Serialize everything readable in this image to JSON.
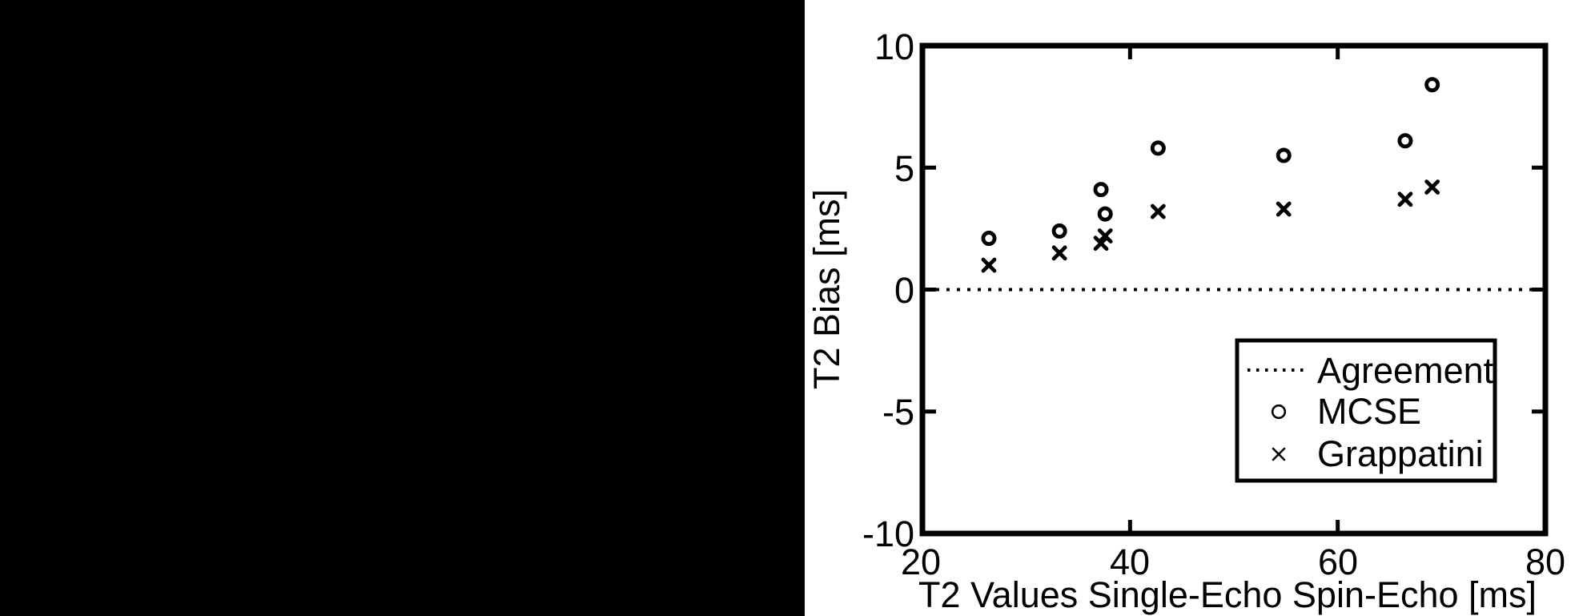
{
  "canvas": {
    "ink_color": "#000000",
    "paper_color": "#ffffff",
    "left_region": "solid-black"
  },
  "chart_data": {
    "type": "scatter",
    "title": "",
    "xlabel": "T2 Values Single-Echo Spin-Echo [ms]",
    "ylabel": "T2 Bias [ms]",
    "xlim": [
      20,
      80
    ],
    "ylim": [
      -10,
      10
    ],
    "xticks": [
      20,
      40,
      60,
      80
    ],
    "yticks": [
      10,
      5,
      0,
      -5,
      -10
    ],
    "grid": false,
    "legend_position": "inside lower right",
    "series": [
      {
        "name": "Agreement",
        "type": "line",
        "style": "dotted",
        "y": 0
      },
      {
        "name": "MCSE",
        "type": "scatter",
        "marker": "circle",
        "points": [
          [
            26.4,
            2.1
          ],
          [
            33.2,
            2.4
          ],
          [
            37.2,
            4.1
          ],
          [
            37.6,
            3.1
          ],
          [
            42.7,
            5.8
          ],
          [
            54.8,
            5.5
          ],
          [
            66.5,
            6.1
          ],
          [
            69.1,
            8.4
          ]
        ]
      },
      {
        "name": "Grappatini",
        "type": "scatter",
        "marker": "x",
        "points": [
          [
            26.4,
            1.0
          ],
          [
            33.2,
            1.5
          ],
          [
            37.2,
            1.9
          ],
          [
            37.6,
            2.2
          ],
          [
            42.7,
            3.2
          ],
          [
            54.8,
            3.3
          ],
          [
            66.5,
            3.7
          ],
          [
            69.1,
            4.2
          ]
        ]
      }
    ]
  }
}
